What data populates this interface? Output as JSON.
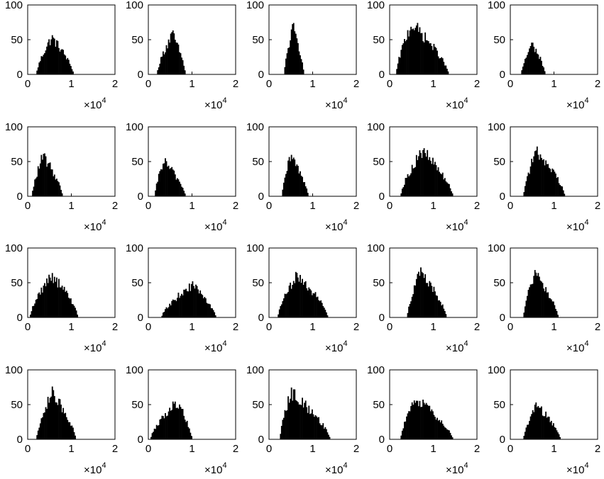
{
  "style": {
    "bar_color": "#000000",
    "axes_color": "#000000",
    "background": "#ffffff"
  },
  "shared_axes": {
    "x_ticks": [
      0,
      1,
      2
    ],
    "y_ticks": [
      0,
      50,
      100
    ],
    "x_tick_labels": [
      "0",
      "1",
      "2"
    ],
    "y_tick_labels": [
      "0",
      "50",
      "100"
    ],
    "x_multiplier_base": "×10",
    "x_multiplier_exponent": "4"
  },
  "chart_data": [
    {
      "type": "bar",
      "xlim": [
        0,
        2
      ],
      "ylim": [
        0,
        100
      ],
      "grid": false,
      "dist": {
        "lo": 0.2,
        "mode": 0.55,
        "hi": 1.05,
        "peak": 57
      }
    },
    {
      "type": "bar",
      "xlim": [
        0,
        2
      ],
      "ylim": [
        0,
        100
      ],
      "grid": false,
      "dist": {
        "lo": 0.2,
        "mode": 0.55,
        "hi": 0.85,
        "peak": 62
      }
    },
    {
      "type": "bar",
      "xlim": [
        0,
        2
      ],
      "ylim": [
        0,
        100
      ],
      "grid": false,
      "dist": {
        "lo": 0.35,
        "mode": 0.55,
        "hi": 0.8,
        "peak": 72
      }
    },
    {
      "type": "bar",
      "xlim": [
        0,
        2
      ],
      "ylim": [
        0,
        100
      ],
      "grid": false,
      "dist": {
        "lo": 0.15,
        "mode": 0.5,
        "hi": 1.35,
        "peak": 78
      }
    },
    {
      "type": "bar",
      "xlim": [
        0,
        2
      ],
      "ylim": [
        0,
        100
      ],
      "grid": false,
      "dist": {
        "lo": 0.25,
        "mode": 0.5,
        "hi": 0.8,
        "peak": 47
      }
    },
    {
      "type": "bar",
      "xlim": [
        0,
        2
      ],
      "ylim": [
        0,
        100
      ],
      "grid": false,
      "dist": {
        "lo": 0.1,
        "mode": 0.35,
        "hi": 0.8,
        "peak": 62
      }
    },
    {
      "type": "bar",
      "xlim": [
        0,
        2
      ],
      "ylim": [
        0,
        100
      ],
      "grid": false,
      "dist": {
        "lo": 0.15,
        "mode": 0.35,
        "hi": 0.85,
        "peak": 55
      }
    },
    {
      "type": "bar",
      "xlim": [
        0,
        2
      ],
      "ylim": [
        0,
        100
      ],
      "grid": false,
      "dist": {
        "lo": 0.3,
        "mode": 0.5,
        "hi": 0.9,
        "peak": 62
      }
    },
    {
      "type": "bar",
      "xlim": [
        0,
        2
      ],
      "ylim": [
        0,
        100
      ],
      "grid": false,
      "dist": {
        "lo": 0.25,
        "mode": 0.75,
        "hi": 1.45,
        "peak": 70
      }
    },
    {
      "type": "bar",
      "xlim": [
        0,
        2
      ],
      "ylim": [
        0,
        100
      ],
      "grid": false,
      "dist": {
        "lo": 0.3,
        "mode": 0.6,
        "hi": 1.25,
        "peak": 70
      }
    },
    {
      "type": "bar",
      "xlim": [
        0,
        2
      ],
      "ylim": [
        0,
        100
      ],
      "grid": false,
      "dist": {
        "lo": 0.05,
        "mode": 0.55,
        "hi": 1.15,
        "peak": 66
      }
    },
    {
      "type": "bar",
      "xlim": [
        0,
        2
      ],
      "ylim": [
        0,
        100
      ],
      "grid": false,
      "dist": {
        "lo": 0.3,
        "mode": 1.0,
        "hi": 1.55,
        "peak": 50
      }
    },
    {
      "type": "bar",
      "xlim": [
        0,
        2
      ],
      "ylim": [
        0,
        100
      ],
      "grid": false,
      "dist": {
        "lo": 0.2,
        "mode": 0.65,
        "hi": 1.35,
        "peak": 65
      }
    },
    {
      "type": "bar",
      "xlim": [
        0,
        2
      ],
      "ylim": [
        0,
        100
      ],
      "grid": false,
      "dist": {
        "lo": 0.4,
        "mode": 0.7,
        "hi": 1.3,
        "peak": 70
      }
    },
    {
      "type": "bar",
      "xlim": [
        0,
        2
      ],
      "ylim": [
        0,
        100
      ],
      "grid": false,
      "dist": {
        "lo": 0.3,
        "mode": 0.55,
        "hi": 1.1,
        "peak": 67
      }
    },
    {
      "type": "bar",
      "xlim": [
        0,
        2
      ],
      "ylim": [
        0,
        100
      ],
      "grid": false,
      "dist": {
        "lo": 0.2,
        "mode": 0.55,
        "hi": 1.1,
        "peak": 72
      }
    },
    {
      "type": "bar",
      "xlim": [
        0,
        2
      ],
      "ylim": [
        0,
        100
      ],
      "grid": false,
      "dist": {
        "lo": 0.05,
        "mode": 0.65,
        "hi": 1.0,
        "peak": 58
      }
    },
    {
      "type": "bar",
      "xlim": [
        0,
        2
      ],
      "ylim": [
        0,
        100
      ],
      "grid": false,
      "dist": {
        "lo": 0.25,
        "mode": 0.5,
        "hi": 1.4,
        "peak": 72
      }
    },
    {
      "type": "bar",
      "xlim": [
        0,
        2
      ],
      "ylim": [
        0,
        100
      ],
      "grid": false,
      "dist": {
        "lo": 0.25,
        "mode": 0.6,
        "hi": 1.45,
        "peak": 62
      }
    },
    {
      "type": "bar",
      "xlim": [
        0,
        2
      ],
      "ylim": [
        0,
        100
      ],
      "grid": false,
      "dist": {
        "lo": 0.3,
        "mode": 0.6,
        "hi": 1.15,
        "peak": 52
      }
    }
  ]
}
